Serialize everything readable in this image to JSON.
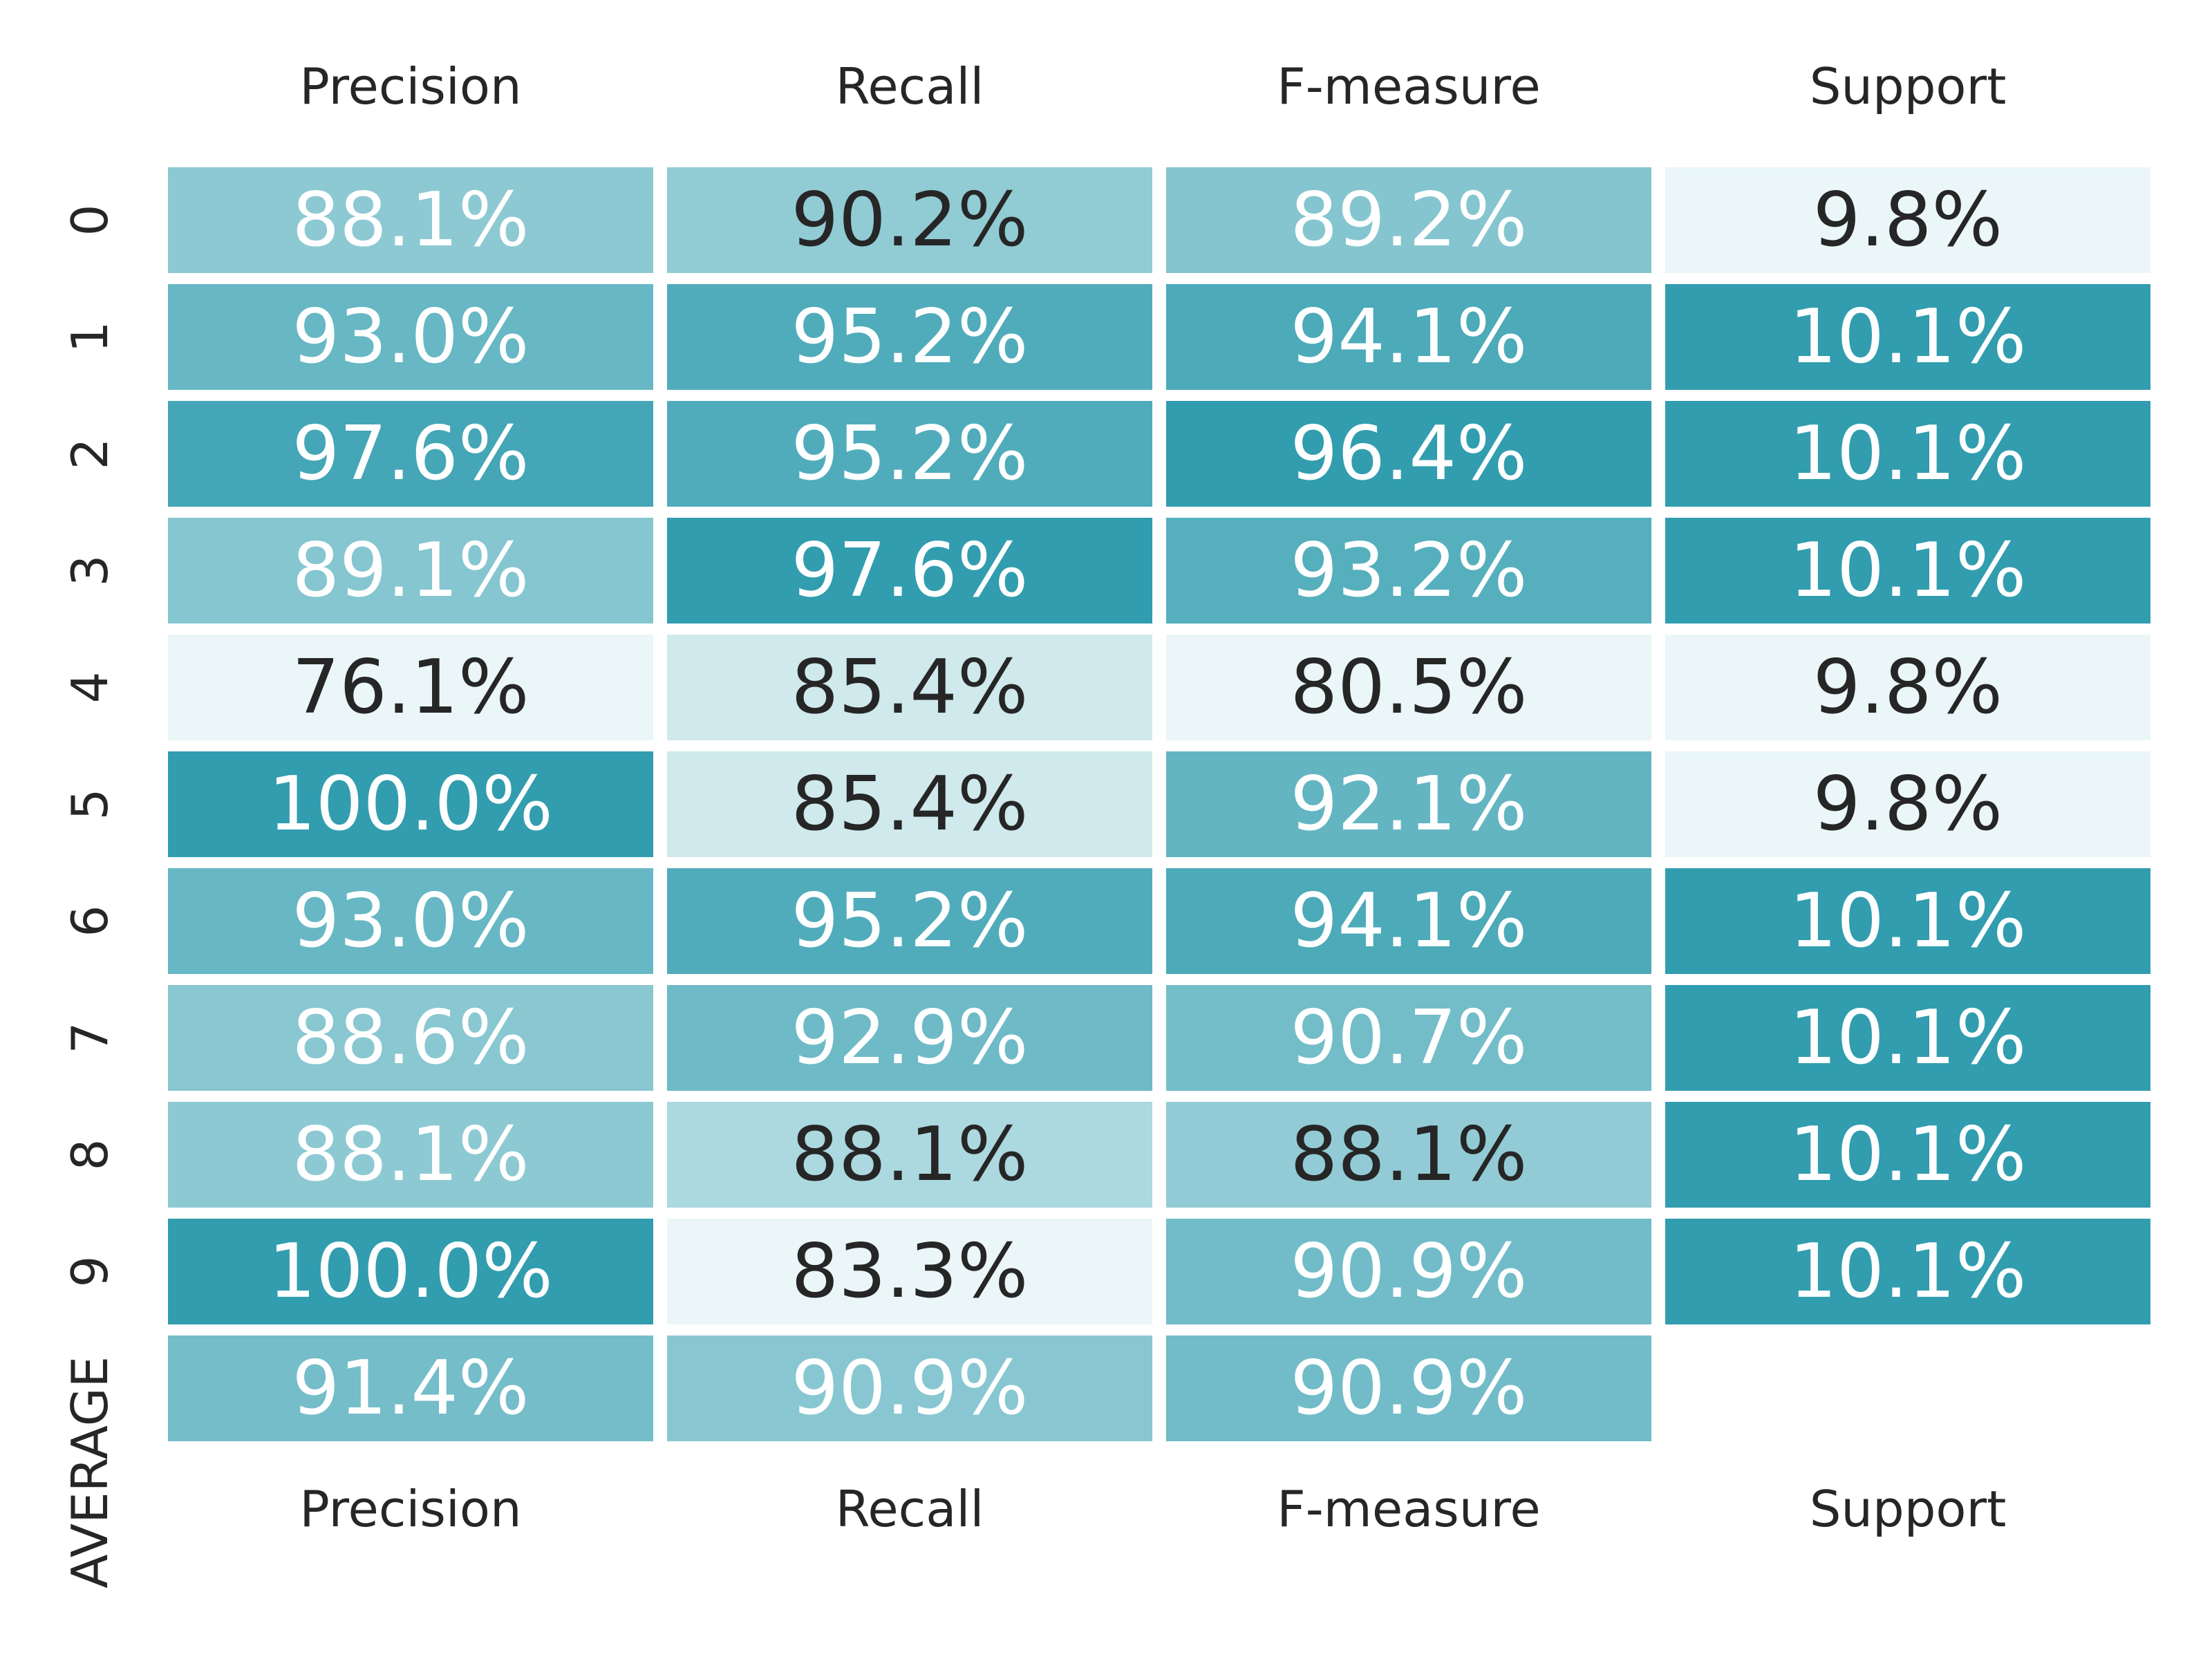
{
  "colors": {
    "low": "#eaf6f7",
    "high": "#319daf",
    "text_dark": "#262626",
    "text_light": "#ffffff",
    "gap": "#ffffff"
  },
  "chart_data": {
    "type": "heatmap",
    "title": "",
    "columns": [
      "Precision",
      "Recall",
      "F-measure",
      "Support"
    ],
    "rows": [
      "0",
      "1",
      "2",
      "3",
      "4",
      "5",
      "6",
      "7",
      "8",
      "9",
      "AVERAGE"
    ],
    "values": [
      [
        88.1,
        90.2,
        89.2,
        9.8
      ],
      [
        93.0,
        95.2,
        94.1,
        10.1
      ],
      [
        97.6,
        95.2,
        96.4,
        10.1
      ],
      [
        89.1,
        97.6,
        93.2,
        10.1
      ],
      [
        76.1,
        85.4,
        80.5,
        9.8
      ],
      [
        100.0,
        85.4,
        92.1,
        9.8
      ],
      [
        93.0,
        95.2,
        94.1,
        10.1
      ],
      [
        88.6,
        92.9,
        90.7,
        10.1
      ],
      [
        88.1,
        88.1,
        88.1,
        10.1
      ],
      [
        100.0,
        83.3,
        90.9,
        10.1
      ],
      [
        91.4,
        90.9,
        90.9,
        null
      ]
    ],
    "labels": [
      [
        "88.1%",
        "90.2%",
        "89.2%",
        "9.8%"
      ],
      [
        "93.0%",
        "95.2%",
        "94.1%",
        "10.1%"
      ],
      [
        "97.6%",
        "95.2%",
        "96.4%",
        "10.1%"
      ],
      [
        "89.1%",
        "97.6%",
        "93.2%",
        "10.1%"
      ],
      [
        "76.1%",
        "85.4%",
        "80.5%",
        "9.8%"
      ],
      [
        "100.0%",
        "85.4%",
        "92.1%",
        "9.8%"
      ],
      [
        "93.0%",
        "95.2%",
        "94.1%",
        "10.1%"
      ],
      [
        "88.6%",
        "92.9%",
        "90.7%",
        "10.1%"
      ],
      [
        "88.1%",
        "88.1%",
        "88.1%",
        "10.1%"
      ],
      [
        "100.0%",
        "83.3%",
        "90.9%",
        "10.1%"
      ],
      [
        "91.4%",
        "90.9%",
        "90.9%",
        ""
      ]
    ],
    "column_ranges": [
      [
        76.1,
        100.0
      ],
      [
        83.3,
        97.6
      ],
      [
        80.5,
        96.4
      ],
      [
        9.8,
        10.1
      ]
    ],
    "column_labels_position": "top and bottom",
    "row_labels_rotation": "vertical",
    "grid": false,
    "legend": "none"
  }
}
